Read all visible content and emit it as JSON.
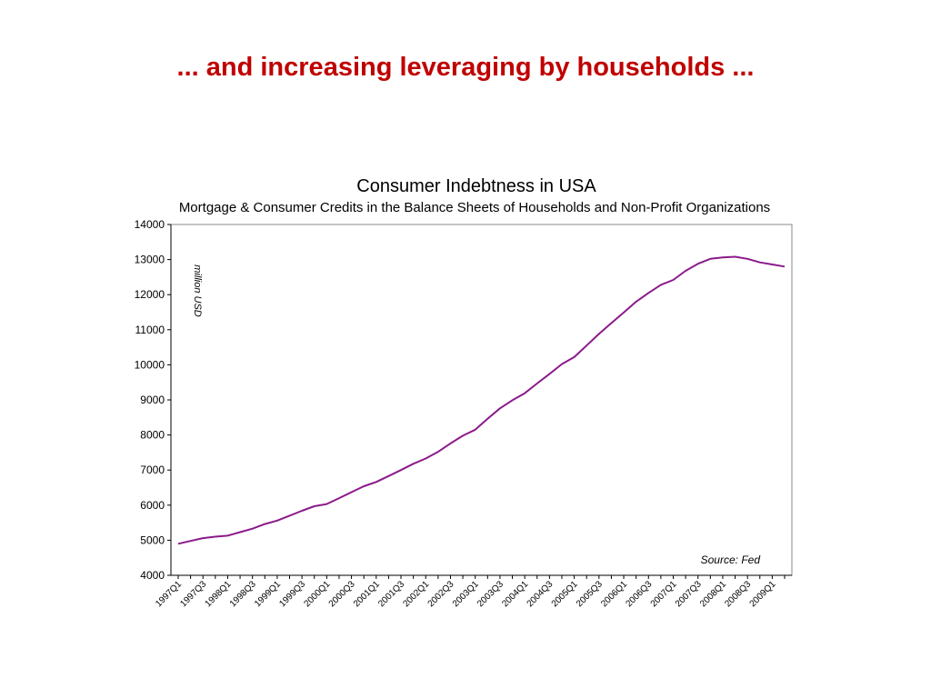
{
  "slide": {
    "title": "... and increasing leveraging by households ..."
  },
  "colors": {
    "title": "#c00000",
    "line": "#8b1a8b",
    "axis": "#000000",
    "frame": "#888888",
    "text": "#000000"
  },
  "chart_data": {
    "type": "line",
    "title": "Consumer Indebtness in USA",
    "subtitle": "Mortgage & Consumer Credits in the Balance Sheets of Households and Non-Profit Organizations",
    "ylabel": "million USD",
    "xlabel": "",
    "source": "Source: Fed",
    "ylim": [
      4000,
      14000
    ],
    "yticks": [
      4000,
      5000,
      6000,
      7000,
      8000,
      9000,
      10000,
      11000,
      12000,
      13000,
      14000
    ],
    "grid": false,
    "legend": "none",
    "xtick_labels": [
      "1997Q1",
      "1997Q3",
      "1998Q1",
      "1998Q3",
      "1999Q1",
      "1999Q3",
      "2000Q1",
      "2000Q3",
      "2001Q1",
      "2001Q3",
      "2002Q1",
      "2002Q3",
      "2003Q1",
      "2003Q3",
      "2004Q1",
      "2004Q3",
      "2005Q1",
      "2005Q3",
      "2006Q1",
      "2006Q3",
      "2007Q1",
      "2007Q3",
      "2008Q1",
      "2008Q3",
      "2009Q1"
    ],
    "x": [
      "1997Q1",
      "1997Q2",
      "1997Q3",
      "1997Q4",
      "1998Q1",
      "1998Q2",
      "1998Q3",
      "1998Q4",
      "1999Q1",
      "1999Q2",
      "1999Q3",
      "1999Q4",
      "2000Q1",
      "2000Q2",
      "2000Q3",
      "2000Q4",
      "2001Q1",
      "2001Q2",
      "2001Q3",
      "2001Q4",
      "2002Q1",
      "2002Q2",
      "2002Q3",
      "2002Q4",
      "2003Q1",
      "2003Q2",
      "2003Q3",
      "2003Q4",
      "2004Q1",
      "2004Q2",
      "2004Q3",
      "2004Q4",
      "2005Q1",
      "2005Q2",
      "2005Q3",
      "2005Q4",
      "2006Q1",
      "2006Q2",
      "2006Q3",
      "2006Q4",
      "2007Q1",
      "2007Q2",
      "2007Q3",
      "2007Q4",
      "2008Q1",
      "2008Q2",
      "2008Q3",
      "2008Q4",
      "2009Q1",
      "2009Q2"
    ],
    "series": [
      {
        "values": [
          4900,
          4980,
          5060,
          5100,
          5130,
          5230,
          5330,
          5460,
          5560,
          5700,
          5840,
          5970,
          6030,
          6200,
          6370,
          6540,
          6660,
          6830,
          7000,
          7180,
          7330,
          7520,
          7760,
          7980,
          8150,
          8460,
          8760,
          8990,
          9190,
          9470,
          9740,
          10020,
          10220,
          10550,
          10880,
          11190,
          11490,
          11800,
          12050,
          12280,
          12420,
          12680,
          12880,
          13020,
          13060,
          13080,
          13020,
          12920,
          12860,
          12800
        ]
      }
    ]
  }
}
